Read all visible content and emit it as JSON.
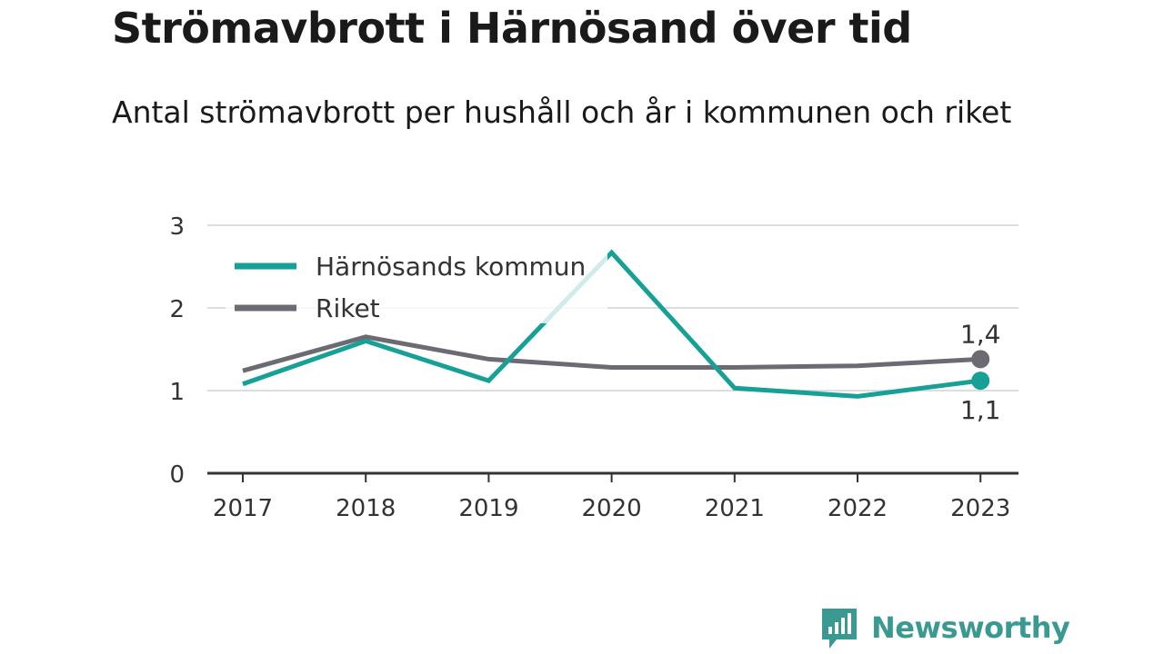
{
  "title": "Strömavbrott i Härnösand över tid",
  "subtitle": "Antal strömavbrott per hushåll och år i kommunen och riket",
  "brand": {
    "name": "Newsworthy",
    "color": "#3a9a92",
    "icon": "chart-bubble-icon"
  },
  "colors": {
    "grid": "#dddddd",
    "axis": "#333333"
  },
  "chart_data": {
    "type": "line",
    "x": [
      "2017",
      "2018",
      "2019",
      "2020",
      "2021",
      "2022",
      "2023"
    ],
    "ylim": [
      0,
      3
    ],
    "yticks": [
      "0",
      "1",
      "2",
      "3"
    ],
    "grid": true,
    "legend_position": "top-left",
    "series": [
      {
        "name": "Härnösands kommun",
        "color": "#16a096",
        "values": [
          1.08,
          1.6,
          1.12,
          2.67,
          1.03,
          0.93,
          1.12
        ],
        "end_label": "1,1"
      },
      {
        "name": "Riket",
        "color": "#6c6b74",
        "values": [
          1.24,
          1.65,
          1.38,
          1.28,
          1.28,
          1.3,
          1.38
        ],
        "end_label": "1,4"
      }
    ]
  }
}
